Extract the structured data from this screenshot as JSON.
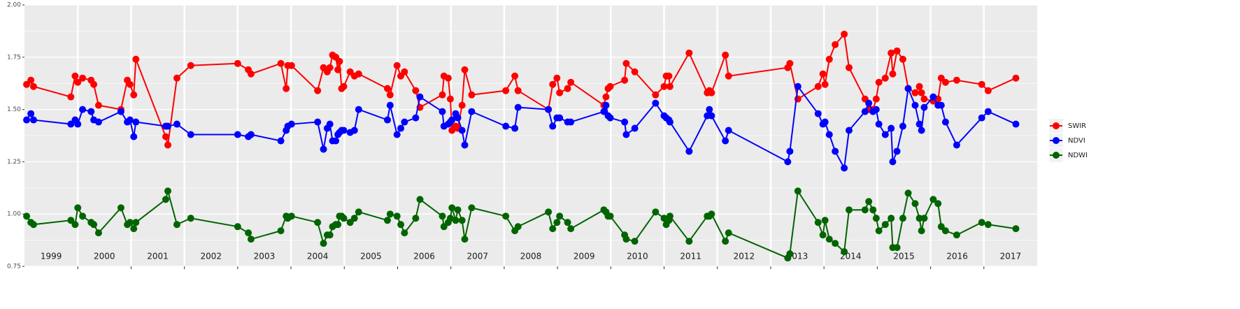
{
  "chart_data": {
    "type": "line",
    "x": [
      1999.04,
      1999.12,
      1999.17,
      1999.87,
      1999.95,
      2000.0,
      2000.09,
      2000.25,
      2000.3,
      2000.39,
      2000.81,
      2000.93,
      2000.98,
      2001.05,
      2001.09,
      2001.65,
      2001.69,
      2001.86,
      2002.12,
      2003.0,
      2003.2,
      2003.25,
      2003.81,
      2003.91,
      2003.94,
      2004.01,
      2004.5,
      2004.61,
      2004.68,
      2004.73,
      2004.78,
      2004.84,
      2004.88,
      2004.91,
      2004.95,
      2004.99,
      2005.11,
      2005.19,
      2005.27,
      2005.81,
      2005.86,
      2005.99,
      2006.06,
      2006.13,
      2006.34,
      2006.42,
      2006.84,
      2006.87,
      2006.95,
      2006.99,
      2007.02,
      2007.09,
      2007.13,
      2007.21,
      2007.26,
      2007.39,
      2008.03,
      2008.2,
      2008.26,
      2008.83,
      2008.91,
      2008.99,
      2009.04,
      2009.19,
      2009.25,
      2009.87,
      2009.91,
      2009.95,
      2009.99,
      2010.26,
      2010.29,
      2010.45,
      2010.84,
      2011.0,
      2011.04,
      2011.09,
      2011.11,
      2011.47,
      2011.81,
      2011.85,
      2011.89,
      2012.15,
      2012.21,
      2013.32,
      2013.36,
      2013.51,
      2013.89,
      2013.98,
      2014.02,
      2014.1,
      2014.21,
      2014.38,
      2014.47,
      2014.77,
      2014.84,
      2014.92,
      2014.98,
      2015.03,
      2015.15,
      2015.26,
      2015.29,
      2015.37,
      2015.48,
      2015.58,
      2015.71,
      2015.79,
      2015.83,
      2015.88,
      2016.05,
      2016.14,
      2016.2,
      2016.28,
      2016.49,
      2016.96,
      2017.08,
      2017.6
    ],
    "series": [
      {
        "name": "SWIR",
        "color": "#ff0000",
        "values": [
          1.62,
          1.64,
          1.61,
          1.56,
          1.66,
          1.63,
          1.65,
          1.64,
          1.62,
          1.52,
          1.5,
          1.64,
          1.62,
          1.57,
          1.74,
          1.37,
          1.33,
          1.65,
          1.71,
          1.72,
          1.69,
          1.67,
          1.72,
          1.6,
          1.71,
          1.71,
          1.59,
          1.7,
          1.68,
          1.7,
          1.76,
          1.75,
          1.69,
          1.73,
          1.6,
          1.61,
          1.68,
          1.66,
          1.67,
          1.6,
          1.57,
          1.71,
          1.66,
          1.68,
          1.59,
          1.51,
          1.57,
          1.66,
          1.65,
          1.55,
          1.4,
          1.42,
          1.41,
          1.52,
          1.69,
          1.57,
          1.59,
          1.66,
          1.59,
          1.5,
          1.62,
          1.65,
          1.58,
          1.6,
          1.63,
          1.52,
          1.56,
          1.6,
          1.61,
          1.64,
          1.72,
          1.68,
          1.57,
          1.61,
          1.66,
          1.66,
          1.61,
          1.77,
          1.58,
          1.59,
          1.58,
          1.76,
          1.66,
          1.7,
          1.72,
          1.55,
          1.61,
          1.67,
          1.62,
          1.74,
          1.81,
          1.86,
          1.7,
          1.55,
          1.5,
          1.5,
          1.55,
          1.63,
          1.65,
          1.77,
          1.67,
          1.78,
          1.74,
          1.6,
          1.58,
          1.61,
          1.58,
          1.55,
          1.54,
          1.55,
          1.65,
          1.63,
          1.64,
          1.62,
          1.59,
          1.65
        ]
      },
      {
        "name": "NDVI",
        "color": "#0000ff",
        "values": [
          1.45,
          1.48,
          1.45,
          1.43,
          1.45,
          1.43,
          1.5,
          1.49,
          1.45,
          1.44,
          1.49,
          1.44,
          1.45,
          1.37,
          1.44,
          1.42,
          1.42,
          1.43,
          1.38,
          1.38,
          1.37,
          1.38,
          1.35,
          1.4,
          1.42,
          1.43,
          1.44,
          1.31,
          1.41,
          1.43,
          1.35,
          1.35,
          1.38,
          1.39,
          1.4,
          1.4,
          1.39,
          1.4,
          1.5,
          1.45,
          1.52,
          1.38,
          1.41,
          1.44,
          1.46,
          1.56,
          1.49,
          1.42,
          1.43,
          1.44,
          1.45,
          1.48,
          1.46,
          1.4,
          1.33,
          1.49,
          1.42,
          1.41,
          1.51,
          1.5,
          1.42,
          1.46,
          1.46,
          1.44,
          1.44,
          1.49,
          1.52,
          1.47,
          1.46,
          1.44,
          1.38,
          1.41,
          1.53,
          1.47,
          1.46,
          1.45,
          1.44,
          1.3,
          1.47,
          1.5,
          1.47,
          1.35,
          1.4,
          1.25,
          1.3,
          1.61,
          1.48,
          1.43,
          1.44,
          1.38,
          1.3,
          1.22,
          1.4,
          1.49,
          1.53,
          1.49,
          1.5,
          1.43,
          1.38,
          1.41,
          1.25,
          1.3,
          1.42,
          1.6,
          1.52,
          1.43,
          1.4,
          1.51,
          1.56,
          1.52,
          1.52,
          1.44,
          1.33,
          1.46,
          1.49,
          1.43
        ]
      },
      {
        "name": "NDWI",
        "color": "#006400",
        "values": [
          0.99,
          0.96,
          0.95,
          0.97,
          0.95,
          1.03,
          0.99,
          0.96,
          0.95,
          0.91,
          1.03,
          0.95,
          0.96,
          0.93,
          0.96,
          1.07,
          1.11,
          0.95,
          0.98,
          0.94,
          0.91,
          0.88,
          0.92,
          0.99,
          0.98,
          0.99,
          0.96,
          0.86,
          0.9,
          0.9,
          0.94,
          0.95,
          0.95,
          0.99,
          0.99,
          0.98,
          0.96,
          0.98,
          1.01,
          0.97,
          1.0,
          0.99,
          0.95,
          0.91,
          0.98,
          1.07,
          0.99,
          0.94,
          0.96,
          0.98,
          1.03,
          0.97,
          1.02,
          0.97,
          0.88,
          1.03,
          0.99,
          0.92,
          0.94,
          1.01,
          0.93,
          0.96,
          0.99,
          0.96,
          0.93,
          1.02,
          1.01,
          0.99,
          0.99,
          0.9,
          0.88,
          0.87,
          1.01,
          0.98,
          0.95,
          0.97,
          0.99,
          0.87,
          0.99,
          0.99,
          1.0,
          0.87,
          0.91,
          0.79,
          0.81,
          1.11,
          0.96,
          0.9,
          0.97,
          0.88,
          0.86,
          0.82,
          1.02,
          1.02,
          1.06,
          1.02,
          0.98,
          0.92,
          0.95,
          0.98,
          0.84,
          0.84,
          0.98,
          1.1,
          1.05,
          0.98,
          0.92,
          0.98,
          1.07,
          1.05,
          0.94,
          0.92,
          0.9,
          0.96,
          0.95,
          0.93
        ]
      }
    ],
    "xlim": [
      1999.0,
      2018.0
    ],
    "xticks": [
      2000,
      2001,
      2002,
      2003,
      2004,
      2005,
      2006,
      2007,
      2008,
      2009,
      2010,
      2011,
      2012,
      2013,
      2014,
      2015,
      2016,
      2017
    ],
    "year_labels": [
      "1999",
      "2000",
      "2001",
      "2002",
      "2003",
      "2004",
      "2005",
      "2006",
      "2007",
      "2008",
      "2009",
      "2010",
      "2011",
      "2012",
      "2013",
      "2014",
      "2015",
      "2016",
      "2017"
    ],
    "ylim": [
      0.75,
      2.0
    ],
    "yticks": [
      0.75,
      {
        "value": 1,
        "label": "1.00"
      },
      1.25,
      {
        "value": 1.5,
        "label": "1.50"
      },
      1.75,
      {
        "value": 2,
        "label": "2.00"
      }
    ],
    "grid": true,
    "legend": "right"
  }
}
